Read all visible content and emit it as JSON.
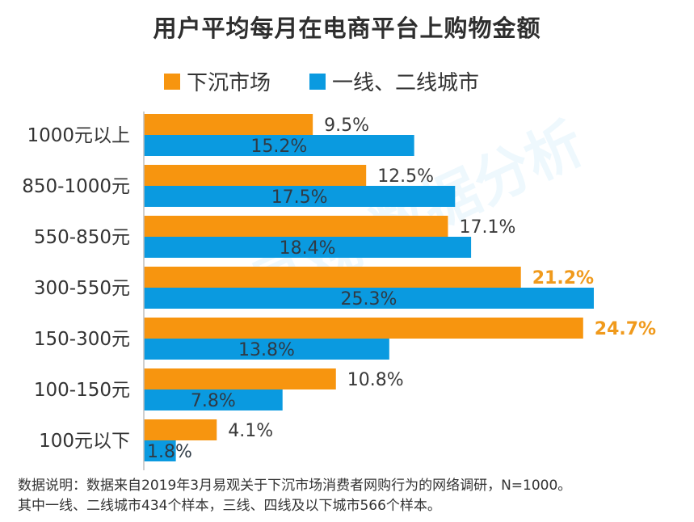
{
  "title": "用户平均每月在电商平台上购物金额",
  "watermark_text": "易观 数据分析",
  "footnote": {
    "line1": "数据说明：数据来自2019年3月易观关于下沉市场消费者网购行为的网络调研，N=1000。",
    "line2": "其中一线、二线城市434个样本，三线、四线及以下城市566个样本。"
  },
  "colors": {
    "orange": "#F7950F",
    "blue": "#0A9AE0",
    "highlight_label": "#F09A1C",
    "axis": "#BFBFBF"
  },
  "chart_data": {
    "type": "bar",
    "orientation": "horizontal",
    "title": "用户平均每月在电商平台上购物金额",
    "categories": [
      "1000元以上",
      "850-1000元",
      "550-850元",
      "300-550元",
      "150-300元",
      "100-150元",
      "100元以下"
    ],
    "series": [
      {
        "name": "下沉市场",
        "color": "#F7950F",
        "values": [
          9.5,
          12.5,
          17.1,
          21.2,
          24.7,
          10.8,
          4.1
        ],
        "labels": [
          "9.5%",
          "12.5%",
          "17.1%",
          "21.2%",
          "24.7%",
          "10.8%",
          "4.1%"
        ],
        "label_position": "outside",
        "highlight": [
          false,
          false,
          false,
          true,
          true,
          false,
          false
        ]
      },
      {
        "name": "一线、二线城市",
        "color": "#0A9AE0",
        "values": [
          15.2,
          17.5,
          18.4,
          25.3,
          13.8,
          7.8,
          1.8
        ],
        "labels": [
          "15.2%",
          "17.5%",
          "18.4%",
          "25.3%",
          "13.8%",
          "7.8%",
          "1.8%"
        ],
        "label_position": "inside",
        "highlight": [
          false,
          false,
          false,
          false,
          false,
          false,
          false
        ]
      }
    ],
    "xlim": [
      0,
      25.3
    ],
    "grid": false,
    "legend_position": "top"
  }
}
